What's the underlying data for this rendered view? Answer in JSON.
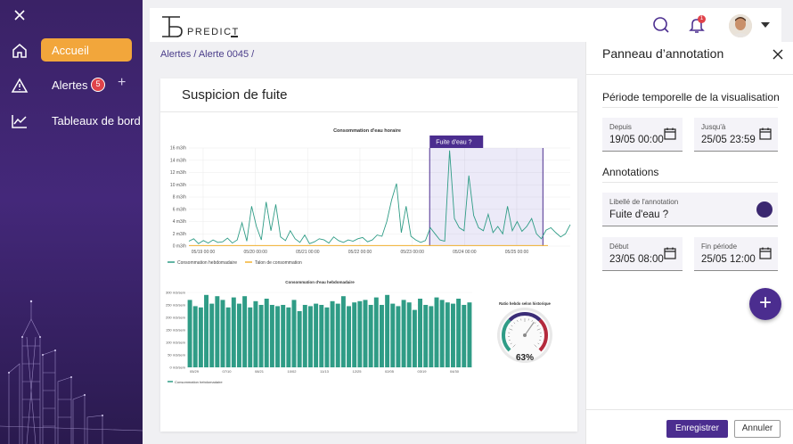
{
  "sidebar": {
    "items": [
      {
        "label": "Accueil",
        "icon": "home-icon",
        "active": true
      },
      {
        "label": "Alertes",
        "icon": "alert-triangle-icon",
        "badge": "5"
      },
      {
        "label": "Tableaux de bord",
        "icon": "line-chart-icon"
      }
    ],
    "accent": "#f2a63b"
  },
  "header": {
    "brand": "PREDICT",
    "notification_count": "1"
  },
  "breadcrumb": {
    "items": [
      "Alertes",
      "Alerte 0045"
    ],
    "sep": "/"
  },
  "card": {
    "title": "Suspicion de fuite"
  },
  "chart_data": [
    {
      "type": "line",
      "title": "Consommation d'eau horaire",
      "x_ticks": [
        "05/19 00:00",
        "05/20 00:00",
        "05/21 00:00",
        "05/22 00:00",
        "05/23 00:00",
        "05/24 00:00",
        "05/25 00:00"
      ],
      "y_ticks": [
        "0 m3/h",
        "2 m3/h",
        "4 m3/h",
        "6 m3/h",
        "8 m3/h",
        "10 m3/h",
        "12 m3/h",
        "14 m3/h",
        "16 m3/h"
      ],
      "ylim": [
        0,
        16
      ],
      "series": [
        {
          "name": "Consommation hebdomadaire",
          "color": "#2f9c86",
          "values": [
            0.8,
            1.2,
            0.4,
            0.9,
            0.5,
            1.0,
            0.6,
            0.7,
            1.3,
            0.5,
            1.0,
            3.8,
            0.8,
            6.5,
            3.2,
            1.0,
            7.2,
            2.5,
            6.8,
            1.5,
            0.9,
            2.5,
            1.2,
            0.6,
            1.8,
            0.4,
            0.7,
            1.2,
            1.0,
            0.5,
            1.5,
            0.9,
            0.6,
            1.0,
            0.8,
            1.2,
            1.4,
            0.7,
            1.0,
            1.8,
            1.6,
            4.0,
            7.5,
            10.2,
            2.2,
            6.5,
            1.6,
            1.0,
            0.6,
            0.9,
            3.0,
            2.0,
            1.0,
            0.8,
            15.6,
            4.5,
            3.0,
            2.5,
            11.5,
            5.0,
            3.0,
            2.5,
            5.2,
            2.2,
            3.2,
            2.0,
            6.5,
            2.5,
            4.0,
            2.4,
            3.2,
            4.5,
            2.0,
            1.2,
            2.6,
            3.0,
            2.2,
            1.5,
            2.0,
            3.5
          ]
        },
        {
          "name": "Talon de consommation",
          "color": "#f2b233",
          "values": [
            0.1
          ]
        }
      ],
      "annotation": {
        "label": "Fuite d'eau ?",
        "from": "05/23 08:00",
        "to": "05/25 12:00"
      }
    },
    {
      "type": "bar",
      "title": "Consommation d'eau hebdomadaire",
      "x_ticks": [
        "05/29",
        "07/10",
        "08/21",
        "10/02",
        "11/13",
        "12/25",
        "02/05",
        "03/19",
        "04/30"
      ],
      "y_ticks": [
        "0 m3/sem",
        "50 m3/sem",
        "100 m3/sem",
        "150 m3/sem",
        "200 m3/sem",
        "250 m3/sem",
        "300 m3/sem"
      ],
      "ylim": [
        0,
        300
      ],
      "series": [
        {
          "name": "Consommation hebdomadaire",
          "color": "#2f9c86",
          "values": [
            270,
            245,
            240,
            290,
            255,
            285,
            270,
            240,
            280,
            255,
            285,
            240,
            265,
            250,
            275,
            250,
            245,
            250,
            240,
            270,
            225,
            250,
            245,
            255,
            250,
            240,
            265,
            255,
            285,
            245,
            260,
            265,
            270,
            250,
            280,
            250,
            290,
            255,
            245,
            270,
            260,
            230,
            275,
            250,
            245,
            280,
            270,
            260,
            255,
            275,
            250,
            260
          ]
        }
      ]
    },
    {
      "type": "gauge",
      "title": "Ratio hebdo selon historique",
      "value": 63,
      "value_label": "63%"
    }
  ],
  "panel": {
    "title": "Panneau d’annotation",
    "period_section": "Période temporelle de la visualisation",
    "depuis_label": "Depuis",
    "depuis_value": "19/05 00:00",
    "jusqua_label": "Jusqu'à",
    "jusqua_value": "25/05 23:59",
    "annotations_section": "Annotations",
    "libelle_label": "Libellé de l'annotation",
    "libelle_value": "Fuite d'eau ?",
    "annotation_color": "#3b2870",
    "debut_label": "Début",
    "debut_value": "23/05 08:00",
    "fin_label": "Fin période",
    "fin_value": "25/05 12:00",
    "save_label": "Enregistrer",
    "cancel_label": "Annuler",
    "add_label": "+"
  }
}
